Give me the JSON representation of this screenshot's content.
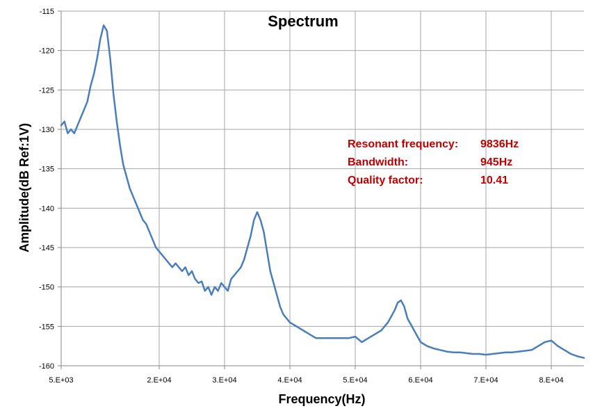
{
  "chart_data": {
    "type": "line",
    "title": "Spectrum",
    "xlabel": "Frequency(Hz)",
    "ylabel": "Amplitude(dB Ref:1V)",
    "xlim": [
      5000,
      85000
    ],
    "ylim": [
      -160,
      -115
    ],
    "grid": true,
    "x_ticks": [
      5000,
      20000,
      30000,
      40000,
      50000,
      60000,
      70000,
      80000
    ],
    "x_tick_labels": [
      "5.E+03",
      "2.E+04",
      "3.E+04",
      "4.E+04",
      "5.E+04",
      "6.E+04",
      "7.E+04",
      "8.E+04"
    ],
    "y_ticks": [
      -115,
      -120,
      -125,
      -130,
      -135,
      -140,
      -145,
      -150,
      -155,
      -160
    ],
    "y_tick_labels": [
      "-115",
      "-120",
      "-125",
      "-130",
      "-135",
      "-140",
      "-145",
      "-150",
      "-155",
      "-160"
    ],
    "colors": {
      "line": "#4a7ebb",
      "annotation": "#c00000",
      "grid": "#a6a6a6"
    },
    "annotations": [
      {
        "label": "Resonant frequency:",
        "value": "9836Hz"
      },
      {
        "label": "Bandwidth:",
        "value": "945Hz"
      },
      {
        "label": "Quality factor:",
        "value": "10.41"
      }
    ],
    "series": [
      {
        "x": [
          5000,
          5500,
          6000,
          6500,
          7000,
          7500,
          8000,
          8500,
          9000,
          9500,
          10000,
          10500,
          11000,
          11500,
          12000,
          12500,
          13000,
          13500,
          14000,
          14500,
          15000,
          15500,
          16000,
          16500,
          17000,
          17500,
          18000,
          18500,
          19000,
          19500,
          20000,
          20500,
          21000,
          21500,
          22000,
          22500,
          23000,
          23500,
          24000,
          24500,
          25000,
          25500,
          26000,
          26500,
          27000,
          27500,
          28000,
          28500,
          29000,
          29500,
          30000,
          30500,
          31000,
          31500,
          32000,
          32500,
          33000,
          33500,
          34000,
          34500,
          35000,
          35500,
          36000,
          36500,
          37000,
          37500,
          38000,
          38500,
          39000,
          39500,
          40000,
          41000,
          42000,
          43000,
          44000,
          45000,
          46000,
          47000,
          48000,
          49000,
          50000,
          51000,
          52000,
          53000,
          54000,
          55000,
          56000,
          56500,
          57000,
          57500,
          58000,
          59000,
          60000,
          61000,
          62000,
          63000,
          64000,
          65000,
          66000,
          67000,
          68000,
          69000,
          70000,
          71000,
          72000,
          73000,
          74000,
          75000,
          76000,
          77000,
          78000,
          79000,
          80000,
          81000,
          82000,
          83000,
          84000,
          85000
        ],
        "y": [
          -129.5,
          -129,
          -130.5,
          -130,
          -130.5,
          -129.5,
          -128.5,
          -127.5,
          -126.5,
          -124.5,
          -123,
          -121,
          -118.5,
          -116.8,
          -117.5,
          -121,
          -125.5,
          -129,
          -132,
          -134.5,
          -136,
          -137.5,
          -138.5,
          -139.5,
          -140.5,
          -141.5,
          -142,
          -143,
          -144,
          -145,
          -145.5,
          -146,
          -146.5,
          -147,
          -147.5,
          -147,
          -147.5,
          -148,
          -147.5,
          -148.5,
          -148,
          -149,
          -149.5,
          -149.3,
          -150.5,
          -150,
          -151,
          -150,
          -150.5,
          -149.5,
          -150,
          -150.5,
          -149,
          -148.5,
          -148,
          -147.5,
          -146.5,
          -145,
          -143.5,
          -141.5,
          -140.5,
          -141.5,
          -143,
          -145.5,
          -148,
          -149.5,
          -151,
          -152.5,
          -153.5,
          -154,
          -154.5,
          -155,
          -155.5,
          -156,
          -156.5,
          -156.5,
          -156.5,
          -156.5,
          -156.5,
          -156.5,
          -156.3,
          -157,
          -156.5,
          -156,
          -155.5,
          -154.5,
          -153,
          -152,
          -151.7,
          -152.5,
          -154,
          -155.5,
          -157,
          -157.5,
          -157.8,
          -158,
          -158.2,
          -158.3,
          -158.3,
          -158.4,
          -158.5,
          -158.5,
          -158.6,
          -158.5,
          -158.4,
          -158.3,
          -158.3,
          -158.2,
          -158.1,
          -158,
          -157.5,
          -157,
          -156.8,
          -157.5,
          -158,
          -158.5,
          -158.8,
          -159
        ]
      }
    ]
  }
}
